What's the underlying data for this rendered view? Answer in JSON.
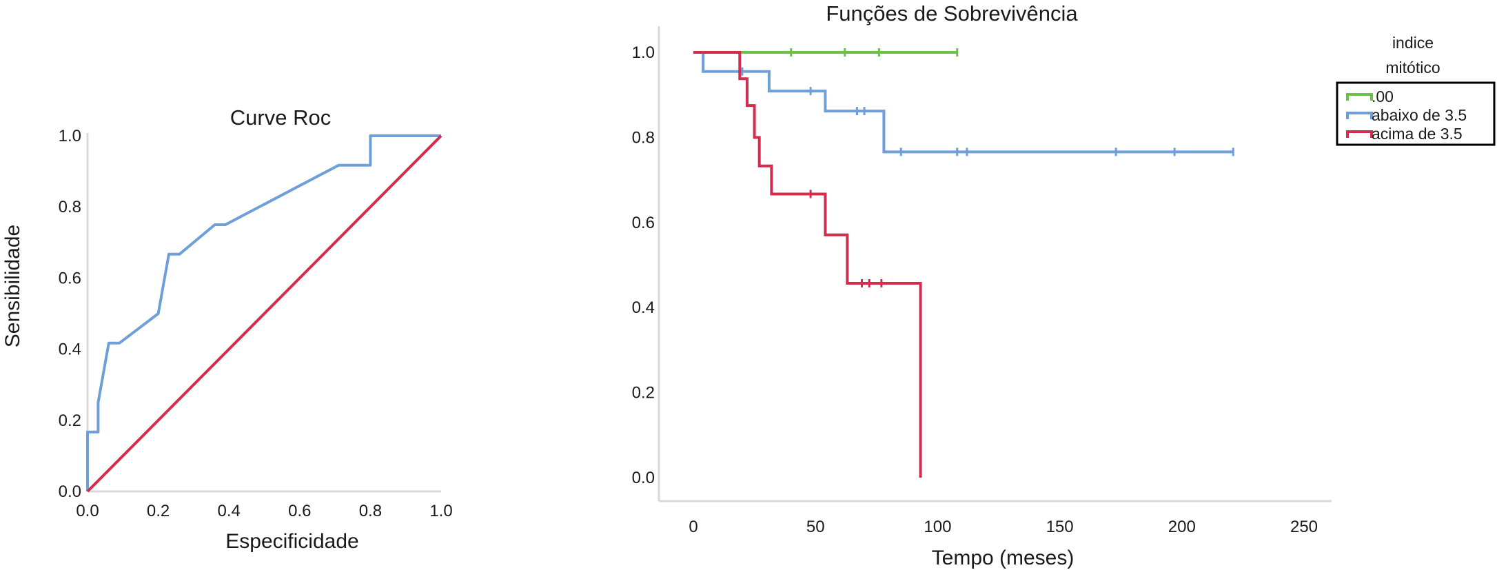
{
  "chart_data": [
    {
      "type": "line",
      "title": "Curve Roc",
      "xlabel": "Especificidade",
      "ylabel": "Sensibilidade",
      "xlim": [
        0,
        1
      ],
      "ylim": [
        0,
        1
      ],
      "x_ticks": [
        "0.0",
        "0.2",
        "0.4",
        "0.6",
        "0.8",
        "1.0"
      ],
      "y_ticks": [
        "0.0",
        "0.2",
        "0.4",
        "0.6",
        "0.8",
        "1.0"
      ],
      "grid": false,
      "series": [
        {
          "color": "#6f9fd8",
          "points": [
            [
              0,
              0
            ],
            [
              0,
              0.167
            ],
            [
              0.03,
              0.167
            ],
            [
              0.03,
              0.25
            ],
            [
              0.06,
              0.417
            ],
            [
              0.09,
              0.417
            ],
            [
              0.2,
              0.5
            ],
            [
              0.23,
              0.667
            ],
            [
              0.26,
              0.667
            ],
            [
              0.36,
              0.75
            ],
            [
              0.39,
              0.75
            ],
            [
              0.71,
              0.917
            ],
            [
              0.8,
              0.917
            ],
            [
              0.8,
              1
            ],
            [
              1,
              1
            ]
          ]
        },
        {
          "color": "#d32d4e",
          "points": [
            [
              0,
              0
            ],
            [
              1,
              1
            ]
          ]
        }
      ]
    },
    {
      "type": "line",
      "title": "Funções de Sobrevivência",
      "xlabel": "Tempo (meses)",
      "ylabel": "",
      "xlim": [
        -7,
        260
      ],
      "ylim": [
        -0.07,
        1.07
      ],
      "x_ticks": [
        "0",
        "50",
        "100",
        "150",
        "200",
        "250"
      ],
      "y_ticks": [
        "0.0",
        "0.2",
        "0.4",
        "0.6",
        "0.8",
        "1.0"
      ],
      "grid": false,
      "legend": {
        "title_line1": "indice",
        "title_line2": "mitótico",
        "position": "top-right"
      },
      "series": [
        {
          "name": ".00",
          "color": "#6cc04a",
          "steps": [
            [
              0,
              1
            ],
            [
              108,
              1
            ]
          ],
          "censored": [
            [
              40,
              1
            ],
            [
              62,
              1
            ],
            [
              76,
              1
            ],
            [
              108,
              1
            ]
          ]
        },
        {
          "name": "abaixo de 3.5",
          "color": "#6f9fd8",
          "steps": [
            [
              0,
              1
            ],
            [
              4,
              0.955
            ],
            [
              31,
              0.909
            ],
            [
              54,
              0.862
            ],
            [
              78,
              0.766
            ],
            [
              221,
              0.766
            ]
          ],
          "censored": [
            [
              20,
              0.955
            ],
            [
              48,
              0.909
            ],
            [
              67,
              0.862
            ],
            [
              70,
              0.862
            ],
            [
              85,
              0.766
            ],
            [
              108,
              0.766
            ],
            [
              112,
              0.766
            ],
            [
              173,
              0.766
            ],
            [
              197,
              0.766
            ],
            [
              221,
              0.766
            ]
          ]
        },
        {
          "name": "acima de 3.5",
          "color": "#d32d4e",
          "steps": [
            [
              0,
              1
            ],
            [
              19,
              0.938
            ],
            [
              22,
              0.875
            ],
            [
              25,
              0.8
            ],
            [
              27,
              0.733
            ],
            [
              32,
              0.667
            ],
            [
              54,
              0.571
            ],
            [
              63,
              0.457
            ],
            [
              93,
              0
            ],
            [
              93,
              0
            ]
          ],
          "censored": [
            [
              48,
              0.667
            ],
            [
              69,
              0.457
            ],
            [
              72,
              0.457
            ],
            [
              77,
              0.457
            ]
          ]
        }
      ]
    }
  ]
}
